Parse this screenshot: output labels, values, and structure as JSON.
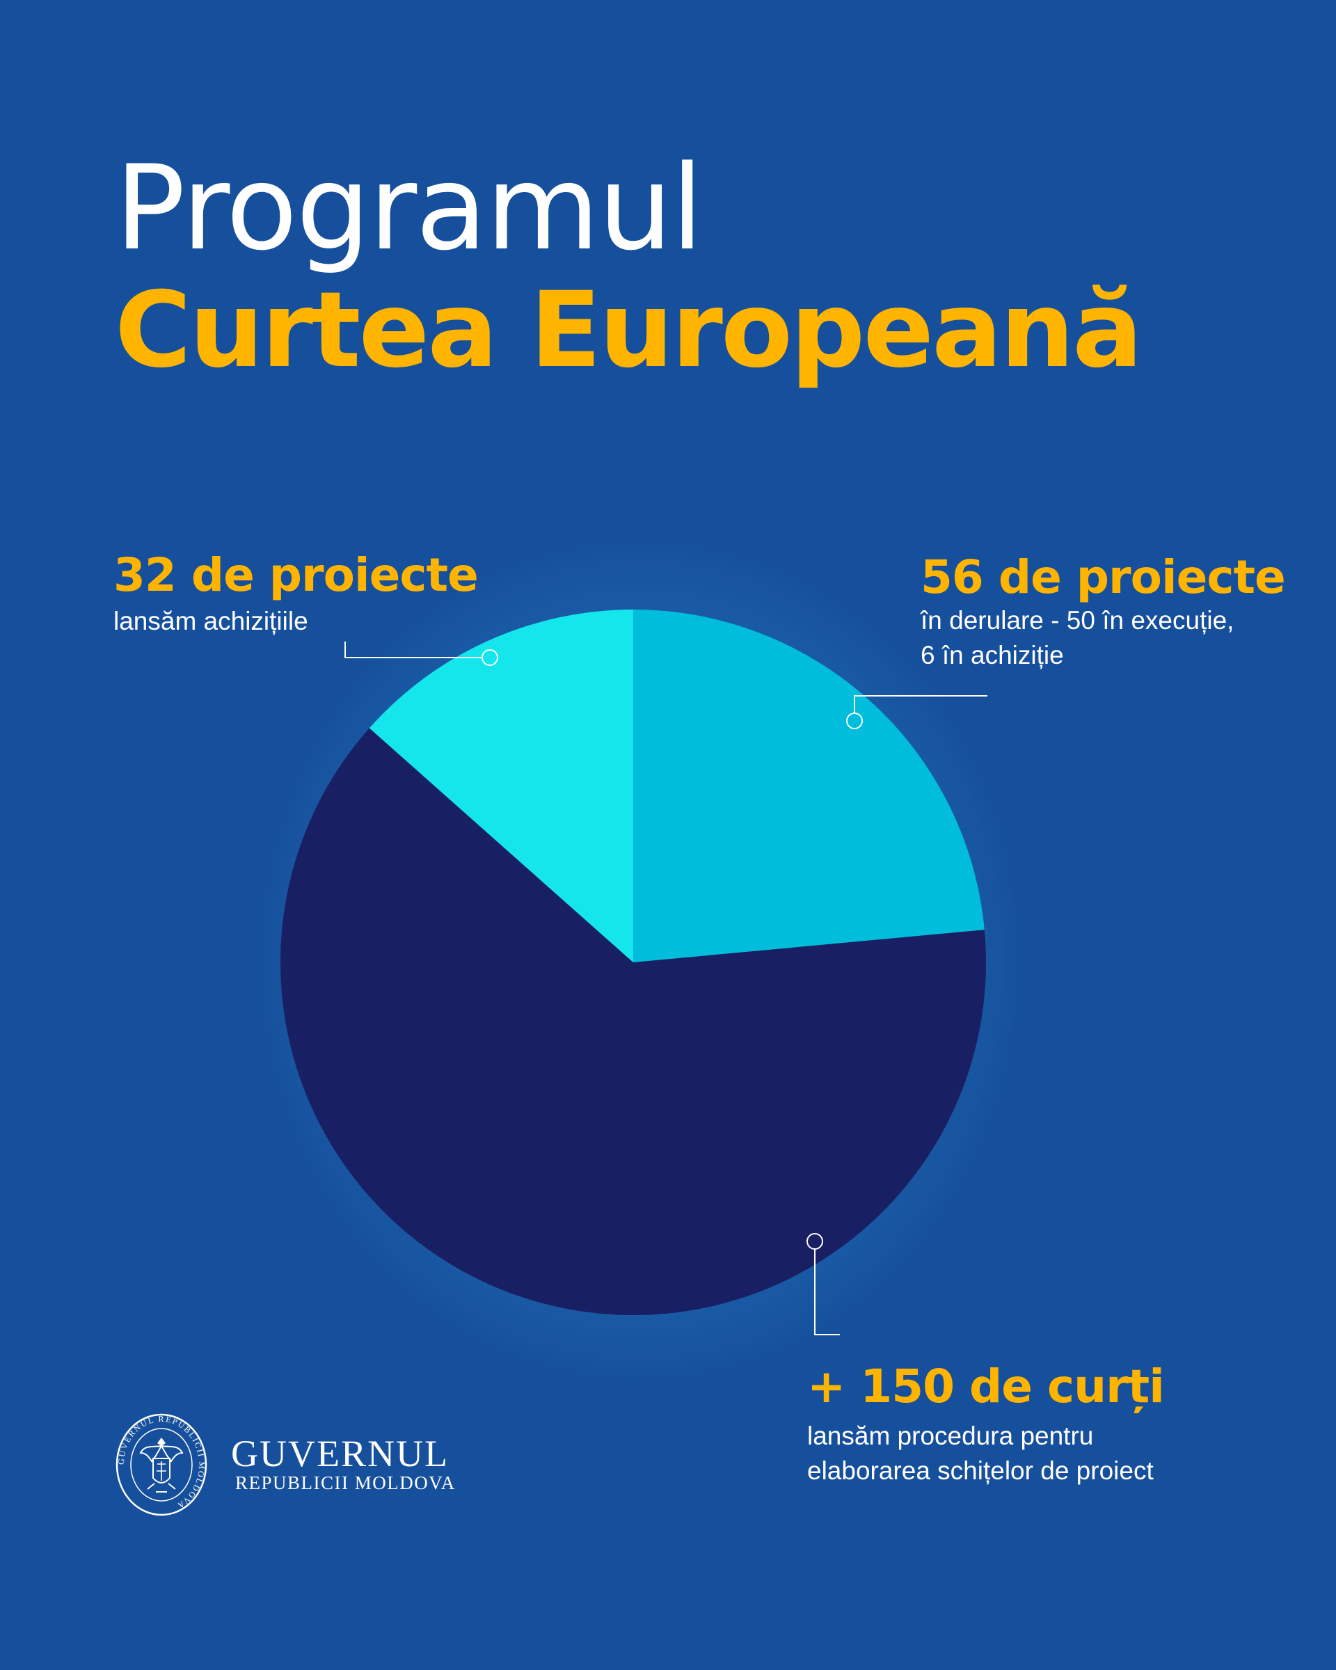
{
  "header": {
    "line1": "Programul",
    "line2": "Curtea Europeană"
  },
  "colors": {
    "accent": "#ffb400",
    "text": "#ffffff",
    "slice_dark": "#181f62",
    "slice_mid": "#00bddb",
    "slice_light": "#14e6ec"
  },
  "chart_data": {
    "type": "pie",
    "title": "Programul Curtea Europeană",
    "slices": [
      {
        "label": "+ 150 de curți",
        "value": 150,
        "description": "lansăm procedura pentru\nelaborarea schițelor de proiect",
        "color": "#181f62"
      },
      {
        "label": "56 de proiecte",
        "value": 56,
        "description": "în derulare - 50 în execuție,\n6 în achiziție",
        "color": "#00bddb"
      },
      {
        "label": "32 de proiecte",
        "value": 32,
        "description": "lansăm achizițiile",
        "color": "#14e6ec"
      }
    ]
  },
  "logo": {
    "name": "GUVERNUL",
    "subtitle": "REPUBLICII MOLDOVA",
    "seal_text": "GUVERNUL REPUBLICII MOLDOVA"
  }
}
